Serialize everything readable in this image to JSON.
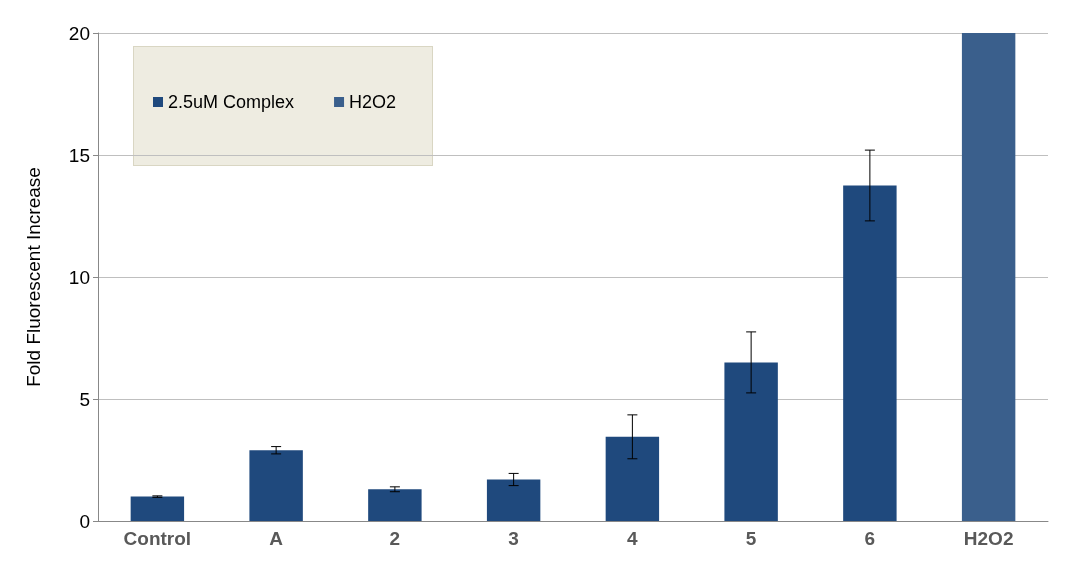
{
  "chart_data": {
    "type": "bar",
    "ylabel": "Fold Fluorescent Increase",
    "categories": [
      "Control",
      "A",
      "2",
      "3",
      "4",
      "5",
      "6",
      "H2O2"
    ],
    "series": [
      {
        "name": "2.5uM Complex",
        "color": "#1f497d",
        "values": [
          1.0,
          2.9,
          1.3,
          1.7,
          3.45,
          6.5,
          13.75,
          null
        ],
        "errors": [
          0.03,
          0.15,
          0.1,
          0.25,
          0.9,
          1.25,
          1.45,
          null
        ]
      },
      {
        "name": "H2O2",
        "color": "#3a5f8c",
        "values": [
          null,
          null,
          null,
          null,
          null,
          null,
          null,
          20
        ]
      }
    ],
    "ylim": [
      0,
      20
    ],
    "yticks": [
      0,
      5,
      10,
      15,
      20
    ],
    "grid": "y",
    "legend": "top left"
  }
}
